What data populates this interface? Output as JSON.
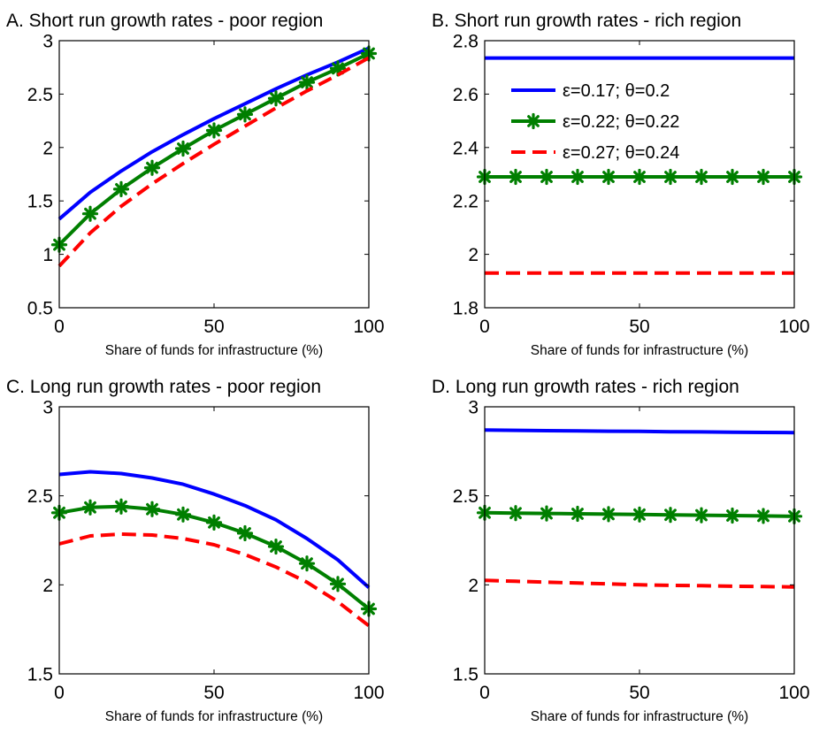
{
  "colors": {
    "series_1": "#0000ff",
    "series_2": "#007f00",
    "series_3": "#ff0000",
    "axes": "#000000",
    "background": "#ffffff"
  },
  "legend": {
    "panel": 1,
    "placement": "top-left",
    "entries": [
      {
        "label": "ε=0.17; θ=0.2",
        "style": "solid",
        "color": "#0000ff"
      },
      {
        "label": "ε=0.22; θ=0.22",
        "style": "solid-asterisk-markers",
        "color": "#007f00"
      },
      {
        "label": "ε=0.27; θ=0.24",
        "style": "dashed",
        "color": "#ff0000"
      }
    ]
  },
  "chart_data": [
    {
      "type": "line",
      "title": "A. Short run growth rates - poor region",
      "xlabel": "Share of funds for infrastructure (%)",
      "ylabel": "",
      "xlim": [
        0,
        100
      ],
      "ylim": [
        0.5,
        3
      ],
      "xticks": [
        0,
        50,
        100
      ],
      "yticks": [
        0.5,
        1,
        1.5,
        2,
        2.5,
        3
      ],
      "ytick_labels": [
        "0.5",
        "1",
        "1.5",
        "2",
        "2.5",
        "3"
      ],
      "grid": false,
      "x": [
        0,
        10,
        20,
        30,
        40,
        50,
        60,
        70,
        80,
        90,
        100
      ],
      "series": [
        {
          "style": "solid",
          "color": "#0000ff",
          "values": [
            1.33,
            1.58,
            1.78,
            1.96,
            2.12,
            2.27,
            2.41,
            2.55,
            2.68,
            2.8,
            2.93
          ]
        },
        {
          "style": "solid-asterisk-markers",
          "color": "#007f00",
          "values": [
            1.09,
            1.38,
            1.61,
            1.81,
            1.99,
            2.16,
            2.31,
            2.46,
            2.61,
            2.74,
            2.88
          ]
        },
        {
          "style": "dashed",
          "color": "#ff0000",
          "values": [
            0.89,
            1.2,
            1.45,
            1.66,
            1.85,
            2.03,
            2.2,
            2.37,
            2.53,
            2.68,
            2.84
          ]
        }
      ]
    },
    {
      "type": "line",
      "title": "B. Short run growth rates - rich region",
      "xlabel": "Share of funds for infrastructure (%)",
      "ylabel": "",
      "xlim": [
        0,
        100
      ],
      "ylim": [
        1.8,
        2.8
      ],
      "xticks": [
        0,
        50,
        100
      ],
      "yticks": [
        1.8,
        2,
        2.2,
        2.4,
        2.6,
        2.8
      ],
      "ytick_labels": [
        "1.8",
        "2",
        "2.2",
        "2.4",
        "2.6",
        "2.8"
      ],
      "grid": false,
      "x": [
        0,
        10,
        20,
        30,
        40,
        50,
        60,
        70,
        80,
        90,
        100
      ],
      "series": [
        {
          "style": "solid",
          "color": "#0000ff",
          "values": [
            2.735,
            2.735,
            2.735,
            2.735,
            2.735,
            2.735,
            2.735,
            2.735,
            2.735,
            2.735,
            2.735
          ]
        },
        {
          "style": "solid-asterisk-markers",
          "color": "#007f00",
          "values": [
            2.29,
            2.29,
            2.29,
            2.29,
            2.29,
            2.29,
            2.29,
            2.29,
            2.29,
            2.29,
            2.29
          ]
        },
        {
          "style": "dashed",
          "color": "#ff0000",
          "values": [
            1.93,
            1.93,
            1.93,
            1.93,
            1.93,
            1.93,
            1.93,
            1.93,
            1.93,
            1.93,
            1.93
          ]
        }
      ]
    },
    {
      "type": "line",
      "title": "C. Long run growth rates - poor region",
      "xlabel": "Share of funds for infrastructure (%)",
      "ylabel": "",
      "xlim": [
        0,
        100
      ],
      "ylim": [
        1.5,
        3
      ],
      "xticks": [
        0,
        50,
        100
      ],
      "yticks": [
        1.5,
        2,
        2.5,
        3
      ],
      "ytick_labels": [
        "1.5",
        "2",
        "2.5",
        "3"
      ],
      "grid": false,
      "x": [
        0,
        10,
        20,
        30,
        40,
        50,
        60,
        70,
        80,
        90,
        100
      ],
      "series": [
        {
          "style": "solid",
          "color": "#0000ff",
          "values": [
            2.62,
            2.635,
            2.625,
            2.6,
            2.565,
            2.51,
            2.445,
            2.365,
            2.26,
            2.14,
            1.985
          ]
        },
        {
          "style": "solid-asterisk-markers",
          "color": "#007f00",
          "values": [
            2.405,
            2.435,
            2.44,
            2.425,
            2.395,
            2.35,
            2.29,
            2.215,
            2.12,
            2.005,
            1.865
          ]
        },
        {
          "style": "dashed",
          "color": "#ff0000",
          "values": [
            2.23,
            2.275,
            2.285,
            2.28,
            2.26,
            2.225,
            2.17,
            2.1,
            2.015,
            1.905,
            1.77
          ]
        }
      ]
    },
    {
      "type": "line",
      "title": "D. Long run growth rates - rich region",
      "xlabel": "Share of funds for infrastructure (%)",
      "ylabel": "",
      "xlim": [
        0,
        100
      ],
      "ylim": [
        1.5,
        3
      ],
      "xticks": [
        0,
        50,
        100
      ],
      "yticks": [
        1.5,
        2,
        2.5,
        3
      ],
      "ytick_labels": [
        "1.5",
        "2",
        "2.5",
        "3"
      ],
      "grid": false,
      "x": [
        0,
        10,
        20,
        30,
        40,
        50,
        60,
        70,
        80,
        90,
        100
      ],
      "series": [
        {
          "style": "solid",
          "color": "#0000ff",
          "values": [
            2.87,
            2.868,
            2.866,
            2.865,
            2.863,
            2.862,
            2.86,
            2.859,
            2.857,
            2.856,
            2.855
          ]
        },
        {
          "style": "solid-asterisk-markers",
          "color": "#007f00",
          "values": [
            2.405,
            2.403,
            2.401,
            2.399,
            2.397,
            2.395,
            2.393,
            2.391,
            2.389,
            2.387,
            2.385
          ]
        },
        {
          "style": "dashed",
          "color": "#ff0000",
          "values": [
            2.025,
            2.02,
            2.015,
            2.01,
            2.005,
            2.0,
            1.997,
            1.995,
            1.992,
            1.99,
            1.988
          ]
        }
      ]
    }
  ]
}
